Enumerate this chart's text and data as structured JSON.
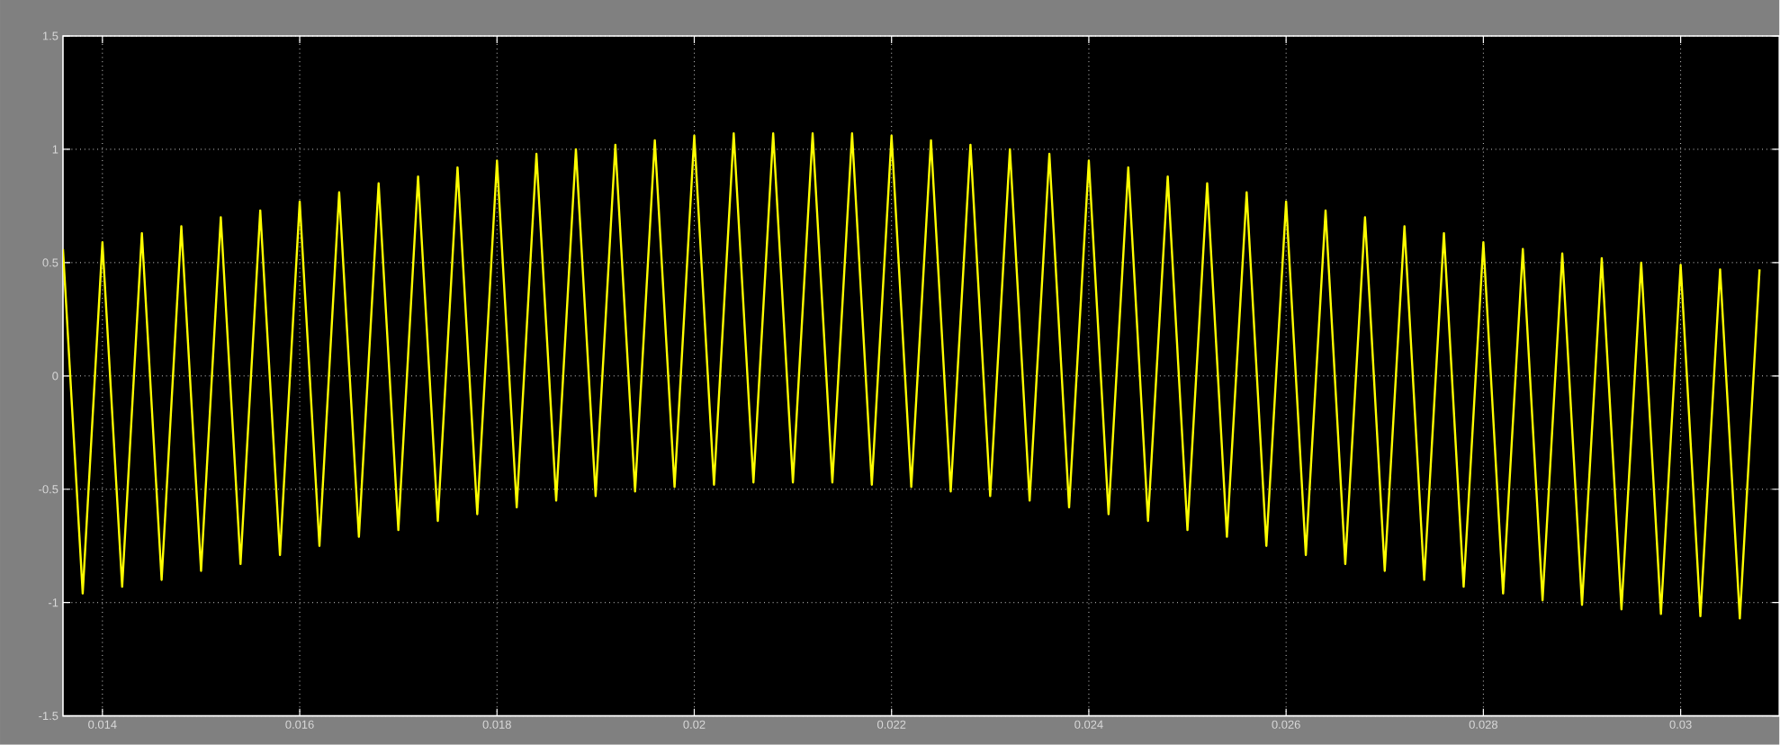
{
  "chart_data": {
    "type": "line",
    "grid": true,
    "line_style": "solid",
    "xlim": [
      0.0136,
      0.031
    ],
    "xticks": [
      0.014,
      0.016,
      0.018,
      0.02,
      0.022,
      0.024,
      0.026,
      0.028,
      0.03
    ],
    "ylim": [
      -1.5,
      1.5
    ],
    "yticks": [
      -1.5,
      -1,
      -0.5,
      0,
      0.5,
      1,
      1.5
    ],
    "series": [
      {
        "color": "#ffff00",
        "x": [
          0.0136,
          0.0138,
          0.014,
          0.0142,
          0.0144,
          0.0146,
          0.0148,
          0.015,
          0.0152,
          0.0154,
          0.0156,
          0.0158,
          0.016,
          0.0162,
          0.0164,
          0.0166,
          0.0168,
          0.017,
          0.0172,
          0.0174,
          0.0176,
          0.0178,
          0.018,
          0.0182,
          0.0184,
          0.0186,
          0.0188,
          0.019,
          0.0192,
          0.0194,
          0.0196,
          0.0198,
          0.02,
          0.0202,
          0.0204,
          0.0206,
          0.0208,
          0.021,
          0.0212,
          0.0214,
          0.0216,
          0.0218,
          0.022,
          0.0222,
          0.0224,
          0.0226,
          0.0228,
          0.023,
          0.0232,
          0.0234,
          0.0236,
          0.0238,
          0.024,
          0.0242,
          0.0244,
          0.0246,
          0.0248,
          0.025,
          0.0252,
          0.0254,
          0.0256,
          0.0258,
          0.026,
          0.0262,
          0.0264,
          0.0266,
          0.0268,
          0.027,
          0.0272,
          0.0274,
          0.0276,
          0.0278,
          0.028,
          0.0282,
          0.0284,
          0.0286,
          0.0288,
          0.029,
          0.0292,
          0.0294,
          0.0296,
          0.0298,
          0.03,
          0.0302,
          0.0304,
          0.0306,
          0.0308
        ],
        "values": [
          0.56,
          -0.96,
          0.59,
          -0.93,
          0.63,
          -0.9,
          0.66,
          -0.86,
          0.7,
          -0.83,
          0.73,
          -0.79,
          0.77,
          -0.75,
          0.81,
          -0.71,
          0.85,
          -0.68,
          0.88,
          -0.64,
          0.92,
          -0.61,
          0.95,
          -0.58,
          0.98,
          -0.55,
          1.0,
          -0.53,
          1.02,
          -0.51,
          1.04,
          -0.49,
          1.06,
          -0.48,
          1.07,
          -0.47,
          1.07,
          -0.47,
          1.07,
          -0.47,
          1.07,
          -0.48,
          1.06,
          -0.49,
          1.04,
          -0.51,
          1.02,
          -0.53,
          1.0,
          -0.55,
          0.98,
          -0.58,
          0.95,
          -0.61,
          0.92,
          -0.64,
          0.88,
          -0.68,
          0.85,
          -0.71,
          0.81,
          -0.75,
          0.77,
          -0.79,
          0.73,
          -0.83,
          0.7,
          -0.86,
          0.66,
          -0.9,
          0.63,
          -0.93,
          0.59,
          -0.96,
          0.56,
          -0.99,
          0.54,
          -1.01,
          0.52,
          -1.03,
          0.5,
          -1.05,
          0.49,
          -1.06,
          0.47,
          -1.07,
          0.47
        ]
      }
    ]
  }
}
